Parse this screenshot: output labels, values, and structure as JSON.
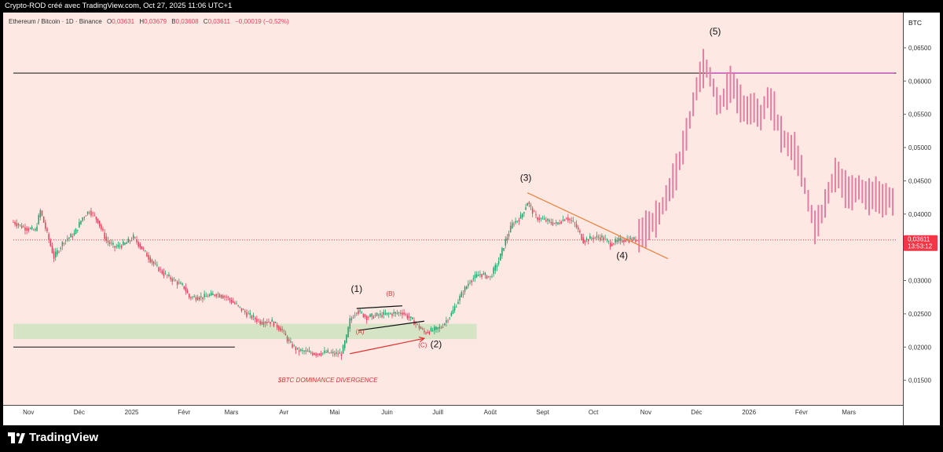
{
  "header": {
    "title": "Crypto-ROD créé avec TradingView.com, Oct 27, 2025 11:06 UTC+1"
  },
  "legend": {
    "symbol": "Ethereum / Bitcoin · 1D · Binance",
    "open_label": "O",
    "open": "0,03631",
    "high_label": "H",
    "high": "0,03679",
    "low_label": "B",
    "low": "0,03608",
    "close_label": "C",
    "close": "0,03611",
    "change": "−0,00019 (−0,52%)"
  },
  "footer": {
    "brand": "TradingView"
  },
  "chart_data": {
    "type": "candlestick",
    "currency_label": "BTC",
    "y_ticks": [
      "0,06500",
      "0,06000",
      "0,05500",
      "0,05000",
      "0,04500",
      "0,04000",
      "0,03500",
      "0,03000",
      "0,02500",
      "0,02000",
      "0,01500"
    ],
    "y_tick_values": [
      0.065,
      0.06,
      0.055,
      0.05,
      0.045,
      0.04,
      0.035,
      0.03,
      0.025,
      0.02,
      0.015
    ],
    "ylim": [
      0.0113,
      0.0703
    ],
    "x_ticks": [
      "Nov",
      "Déc",
      "2025",
      "Févr",
      "Mars",
      "Avr",
      "Mai",
      "Juin",
      "Juill",
      "Août",
      "Sept",
      "Oct",
      "Nov",
      "Déc",
      "2026",
      "Févr",
      "Mars"
    ],
    "x_tick_dates": [
      "2024-11-01",
      "2024-12-01",
      "2025-01-01",
      "2025-02-01",
      "2025-03-01",
      "2025-04-01",
      "2025-05-01",
      "2025-06-01",
      "2025-07-01",
      "2025-08-01",
      "2025-09-01",
      "2025-10-01",
      "2025-11-01",
      "2025-12-01",
      "2026-01-01",
      "2026-02-01",
      "2026-03-01"
    ],
    "last_price": {
      "value": 0.03611,
      "label": "0,03611",
      "countdown": "13:53:12",
      "color": "#f23645"
    },
    "price_path": [
      [
        "2024-10-23",
        0.0388
      ],
      [
        "2024-10-29",
        0.038
      ],
      [
        "2024-11-05",
        0.0375
      ],
      [
        "2024-11-08",
        0.0405
      ],
      [
        "2024-11-12",
        0.037
      ],
      [
        "2024-11-16",
        0.0335
      ],
      [
        "2024-11-22",
        0.036
      ],
      [
        "2024-11-28",
        0.037
      ],
      [
        "2024-12-03",
        0.0395
      ],
      [
        "2024-12-07",
        0.0405
      ],
      [
        "2024-12-12",
        0.039
      ],
      [
        "2024-12-17",
        0.036
      ],
      [
        "2024-12-22",
        0.035
      ],
      [
        "2024-12-28",
        0.0355
      ],
      [
        "2025-01-02",
        0.0365
      ],
      [
        "2025-01-08",
        0.0345
      ],
      [
        "2025-01-14",
        0.0325
      ],
      [
        "2025-01-20",
        0.031
      ],
      [
        "2025-01-26",
        0.03
      ],
      [
        "2025-02-01",
        0.029
      ],
      [
        "2025-02-04",
        0.0275
      ],
      [
        "2025-02-12",
        0.0275
      ],
      [
        "2025-02-20",
        0.028
      ],
      [
        "2025-02-26",
        0.0275
      ],
      [
        "2025-03-03",
        0.0265
      ],
      [
        "2025-03-10",
        0.025
      ],
      [
        "2025-03-18",
        0.0238
      ],
      [
        "2025-03-25",
        0.0238
      ],
      [
        "2025-03-31",
        0.0225
      ],
      [
        "2025-04-04",
        0.0207
      ],
      [
        "2025-04-09",
        0.0195
      ],
      [
        "2025-04-14",
        0.0193
      ],
      [
        "2025-04-20",
        0.019
      ],
      [
        "2025-04-26",
        0.0192
      ],
      [
        "2025-05-01",
        0.019
      ],
      [
        "2025-05-05",
        0.019
      ],
      [
        "2025-05-08",
        0.0215
      ],
      [
        "2025-05-10",
        0.024
      ],
      [
        "2025-05-14",
        0.0255
      ],
      [
        "2025-05-20",
        0.0245
      ],
      [
        "2025-05-27",
        0.0248
      ],
      [
        "2025-06-03",
        0.025
      ],
      [
        "2025-06-10",
        0.0252
      ],
      [
        "2025-06-16",
        0.024
      ],
      [
        "2025-06-20",
        0.023
      ],
      [
        "2025-06-23",
        0.0222
      ],
      [
        "2025-06-28",
        0.0225
      ],
      [
        "2025-07-03",
        0.023
      ],
      [
        "2025-07-09",
        0.025
      ],
      [
        "2025-07-14",
        0.0275
      ],
      [
        "2025-07-20",
        0.03
      ],
      [
        "2025-07-26",
        0.031
      ],
      [
        "2025-08-01",
        0.0305
      ],
      [
        "2025-08-06",
        0.033
      ],
      [
        "2025-08-10",
        0.036
      ],
      [
        "2025-08-14",
        0.0385
      ],
      [
        "2025-08-19",
        0.0395
      ],
      [
        "2025-08-23",
        0.0418
      ],
      [
        "2025-08-28",
        0.0395
      ],
      [
        "2025-09-03",
        0.039
      ],
      [
        "2025-09-09",
        0.0385
      ],
      [
        "2025-09-15",
        0.0395
      ],
      [
        "2025-09-20",
        0.0385
      ],
      [
        "2025-09-25",
        0.036
      ],
      [
        "2025-10-01",
        0.0365
      ],
      [
        "2025-10-06",
        0.0365
      ],
      [
        "2025-10-11",
        0.0355
      ],
      [
        "2025-10-16",
        0.036
      ],
      [
        "2025-10-21",
        0.0362
      ],
      [
        "2025-10-27",
        0.0361
      ]
    ],
    "projection_path": [
      [
        "2025-10-27",
        0.0365
      ],
      [
        "2025-11-02",
        0.038
      ],
      [
        "2025-11-08",
        0.0395
      ],
      [
        "2025-11-14",
        0.043
      ],
      [
        "2025-11-20",
        0.047
      ],
      [
        "2025-11-26",
        0.053
      ],
      [
        "2025-12-02",
        0.06
      ],
      [
        "2025-12-06",
        0.0625
      ],
      [
        "2025-12-10",
        0.06
      ],
      [
        "2025-12-14",
        0.056
      ],
      [
        "2025-12-18",
        0.058
      ],
      [
        "2025-12-22",
        0.06
      ],
      [
        "2025-12-26",
        0.057
      ],
      [
        "2025-12-30",
        0.0555
      ],
      [
        "2026-01-04",
        0.056
      ],
      [
        "2026-01-08",
        0.0545
      ],
      [
        "2026-01-12",
        0.0575
      ],
      [
        "2026-01-16",
        0.0555
      ],
      [
        "2026-01-20",
        0.052
      ],
      [
        "2026-01-24",
        0.0505
      ],
      [
        "2026-01-28",
        0.0495
      ],
      [
        "2026-02-01",
        0.0465
      ],
      [
        "2026-02-05",
        0.042
      ],
      [
        "2026-02-09",
        0.038
      ],
      [
        "2026-02-13",
        0.04
      ],
      [
        "2026-02-18",
        0.044
      ],
      [
        "2026-02-22",
        0.0465
      ],
      [
        "2026-02-26",
        0.044
      ],
      [
        "2026-03-02",
        0.043
      ],
      [
        "2026-03-07",
        0.044
      ],
      [
        "2026-03-12",
        0.0425
      ],
      [
        "2026-03-17",
        0.043
      ],
      [
        "2026-03-21",
        0.042
      ],
      [
        "2026-03-25",
        0.0425
      ],
      [
        "2026-03-28",
        0.0415
      ]
    ],
    "support_zone": {
      "from": "2024-10-23",
      "to": "2025-07-24",
      "low": 0.0212,
      "high": 0.0235,
      "color": "#d6e4c6"
    },
    "hlines": [
      {
        "name": "resistance-line",
        "from": "2024-10-23",
        "to": "2026-03-29",
        "price": 0.0612,
        "color": "#111111"
      },
      {
        "name": "projected-target-line",
        "from": "2025-12-06",
        "to": "2026-03-28",
        "price": 0.0612,
        "color": "#cc33cc"
      },
      {
        "name": "support-line",
        "from": "2024-10-23",
        "to": "2025-03-03",
        "price": 0.02,
        "color": "#111111"
      },
      {
        "name": "last-price-line",
        "from": "2024-10-23",
        "to": "2026-03-29",
        "price": 0.03611,
        "color": "#f23645"
      }
    ],
    "trendlines": [
      {
        "name": "downtrend-line",
        "from": [
          "2025-08-23",
          0.0432
        ],
        "to": [
          "2025-11-14",
          0.0333
        ],
        "color": "#e8823a"
      },
      {
        "name": "flag-upper-line",
        "from": [
          "2025-05-14",
          0.0258
        ],
        "to": [
          "2025-06-10",
          0.0262
        ],
        "color": "#111111"
      },
      {
        "name": "flag-lower-line",
        "from": [
          "2025-05-15",
          0.0225
        ],
        "to": [
          "2025-06-23",
          0.0239
        ],
        "color": "#111111"
      }
    ],
    "arrow": {
      "from": [
        "2025-05-10",
        0.019
      ],
      "to": [
        "2025-06-23",
        0.0213
      ],
      "color": "#e03030"
    },
    "annotations": [
      {
        "text": "(1)",
        "date": "2025-05-14",
        "price": 0.0283,
        "color": "#111111",
        "size": 12
      },
      {
        "text": "(B)",
        "date": "2025-06-03",
        "price": 0.0277,
        "color": "#e03030",
        "size": 8
      },
      {
        "text": "(A)",
        "date": "2025-05-16",
        "price": 0.022,
        "color": "#e03030",
        "size": 8
      },
      {
        "text": "(C)",
        "date": "2025-06-22",
        "price": 0.02,
        "color": "#e03030",
        "size": 8
      },
      {
        "text": "(2)",
        "date": "2025-06-30",
        "price": 0.02,
        "color": "#111111",
        "size": 12
      },
      {
        "text": "(3)",
        "date": "2025-08-22",
        "price": 0.045,
        "color": "#111111",
        "size": 12
      },
      {
        "text": "(4)",
        "date": "2025-10-18",
        "price": 0.0333,
        "color": "#111111",
        "size": 12
      },
      {
        "text": "(5)",
        "date": "2025-12-12",
        "price": 0.067,
        "color": "#111111",
        "size": 12
      },
      {
        "text": "$BTC DOMINANCE DIVERGENCE",
        "date": "2025-04-27",
        "price": 0.0147,
        "color": "#e03030",
        "size": 8,
        "italic": true
      }
    ]
  }
}
